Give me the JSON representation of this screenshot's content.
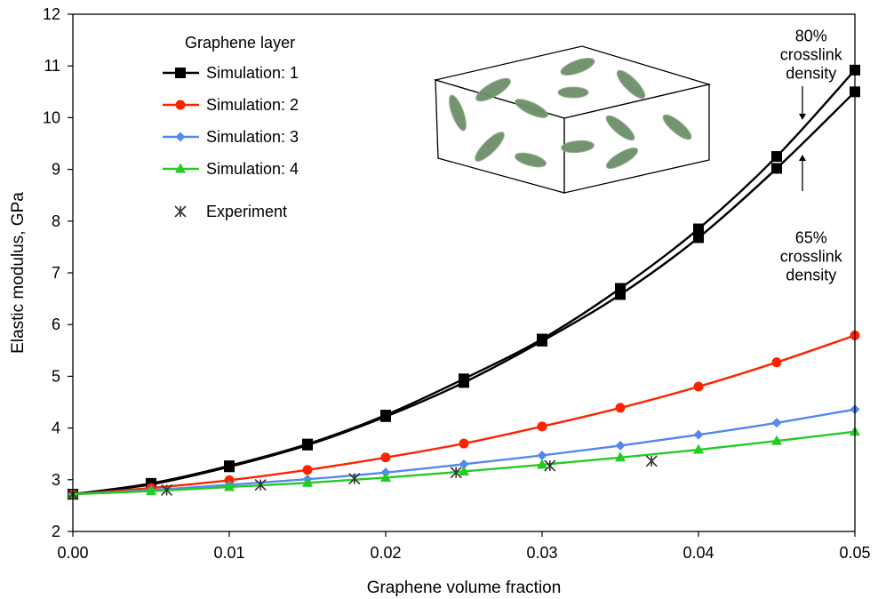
{
  "chart_data": {
    "type": "line",
    "title": "",
    "xlabel": "Graphene volume fraction",
    "ylabel": "Elastic modulus, GPa",
    "xlim": [
      0,
      0.05
    ],
    "ylim": [
      2,
      12
    ],
    "x_ticks": [
      "0.00",
      "0.01",
      "0.02",
      "0.03",
      "0.04",
      "0.05"
    ],
    "y_ticks": [
      "2",
      "3",
      "4",
      "5",
      "6",
      "7",
      "8",
      "9",
      "10",
      "11",
      "12"
    ],
    "grid": false,
    "legend": {
      "title": "Graphene layer",
      "placement": "top-left"
    },
    "colors": {
      "sim1": "#000000",
      "sim2": "#ff2200",
      "sim3": "#5588ee",
      "sim4": "#22cc22",
      "experiment": "#333333"
    },
    "series": [
      {
        "name": "Simulation: 1",
        "marker": "square",
        "color": "#000000",
        "x": [
          0,
          0.005,
          0.01,
          0.015,
          0.02,
          0.025,
          0.03,
          0.035,
          0.04,
          0.045,
          0.05
        ],
        "values": [
          2.72,
          2.93,
          3.27,
          3.69,
          4.25,
          4.95,
          5.72,
          6.7,
          7.85,
          9.25,
          10.92
        ]
      },
      {
        "name": "Simulation: 1 (65% crosslink)",
        "marker": "square",
        "color": "#000000",
        "in_legend": false,
        "x": [
          0,
          0.005,
          0.01,
          0.015,
          0.02,
          0.025,
          0.03,
          0.035,
          0.04,
          0.045,
          0.05
        ],
        "values": [
          2.72,
          2.91,
          3.25,
          3.67,
          4.22,
          4.88,
          5.68,
          6.58,
          7.68,
          9.02,
          10.5
        ]
      },
      {
        "name": "Simulation: 2",
        "marker": "circle",
        "color": "#ff2200",
        "x": [
          0,
          0.005,
          0.01,
          0.015,
          0.02,
          0.025,
          0.03,
          0.035,
          0.04,
          0.045,
          0.05
        ],
        "values": [
          2.72,
          2.84,
          2.99,
          3.19,
          3.43,
          3.7,
          4.03,
          4.39,
          4.8,
          5.27,
          5.79
        ]
      },
      {
        "name": "Simulation: 3",
        "marker": "diamond",
        "color": "#5588ee",
        "x": [
          0,
          0.005,
          0.01,
          0.015,
          0.02,
          0.025,
          0.03,
          0.035,
          0.04,
          0.045,
          0.05
        ],
        "values": [
          2.72,
          2.8,
          2.9,
          3.01,
          3.14,
          3.3,
          3.47,
          3.66,
          3.87,
          4.1,
          4.36
        ]
      },
      {
        "name": "Simulation: 4",
        "marker": "triangle",
        "color": "#22cc22",
        "x": [
          0,
          0.005,
          0.01,
          0.015,
          0.02,
          0.025,
          0.03,
          0.035,
          0.04,
          0.045,
          0.05
        ],
        "values": [
          2.72,
          2.78,
          2.86,
          2.94,
          3.04,
          3.16,
          3.29,
          3.43,
          3.58,
          3.75,
          3.93
        ]
      },
      {
        "name": "Experiment",
        "marker": "asterisk",
        "color": "#333333",
        "line": false,
        "x": [
          0,
          0.006,
          0.012,
          0.018,
          0.0245,
          0.0305,
          0.037
        ],
        "values": [
          2.72,
          2.8,
          2.9,
          3.02,
          3.14,
          3.27,
          3.36
        ]
      }
    ],
    "annotations": [
      {
        "lines": [
          "80%",
          "crosslink",
          "density"
        ],
        "x": 0.0472,
        "y": 11.3
      },
      {
        "lines": [
          "65%",
          "crosslink",
          "density"
        ],
        "x": 0.0472,
        "y": 7.4
      }
    ]
  }
}
